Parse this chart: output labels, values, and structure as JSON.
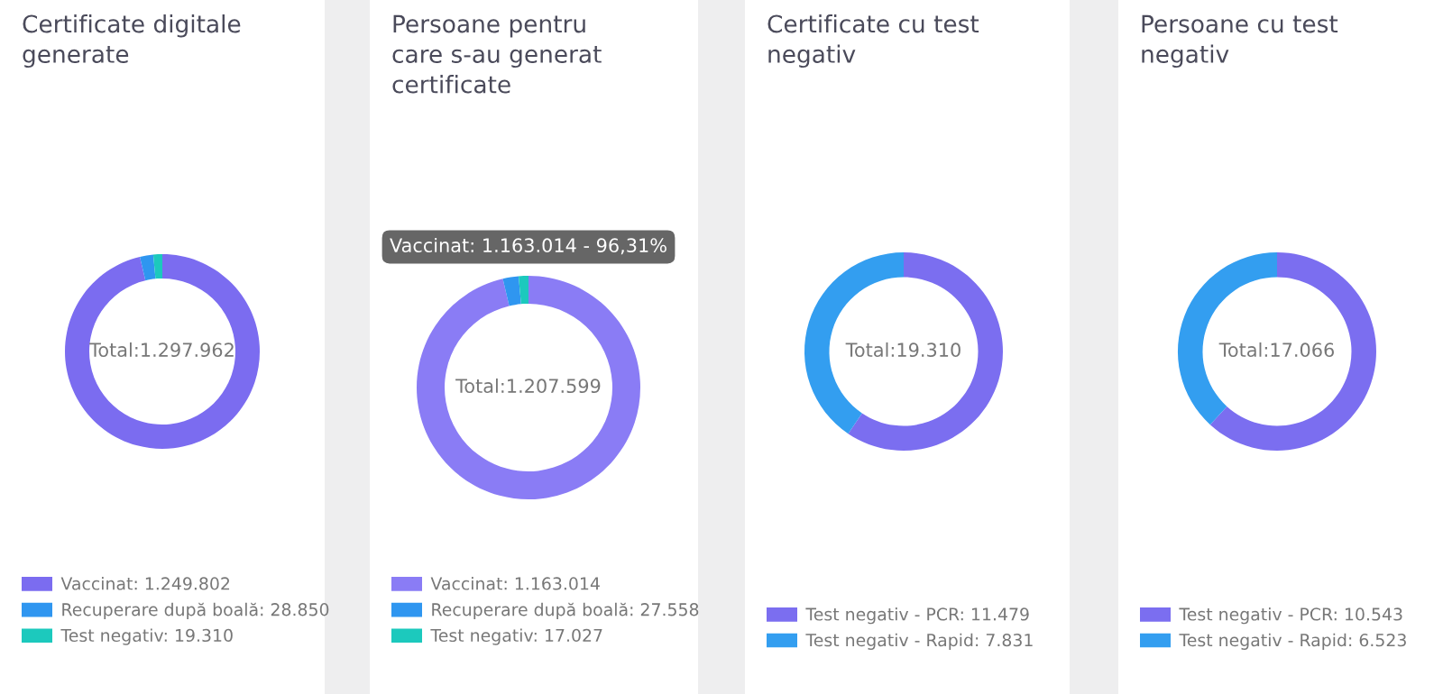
{
  "chart_data": [
    {
      "type": "donut",
      "title": "Certificate digitale\ngenerate",
      "categories": [
        "Vaccinat: 1.249.802",
        "Recuperare după boală: 28.850",
        "Test negativ: 19.310"
      ],
      "values": [
        1249802,
        28850,
        19310
      ],
      "colors": [
        "#7b6cf0",
        "#2f96f0",
        "#1cc9bd"
      ],
      "legend": "bottom",
      "annotations": [
        "Total:1.297.962"
      ]
    },
    {
      "type": "donut",
      "title": "Persoane pentru\ncare s-au generat\ncertificate",
      "categories": [
        "Vaccinat: 1.163.014",
        "Recuperare după boală: 27.558",
        "Test negativ: 17.027"
      ],
      "values": [
        1163014,
        27558,
        17027
      ],
      "colors": [
        "#8a7cf5",
        "#2f96f0",
        "#1cc9bd"
      ],
      "legend": "bottom",
      "annotations": [
        "Total:1.207.599",
        "Vaccinat: 1.163.014 - 96,31%"
      ]
    },
    {
      "type": "donut",
      "title": "Certificate cu test\nnegativ",
      "categories": [
        "Test negativ - PCR: 11.479",
        "Test negativ - Rapid: 7.831"
      ],
      "values": [
        11479,
        7831
      ],
      "colors": [
        "#7b6ef0",
        "#339ef0"
      ],
      "legend": "bottom",
      "annotations": [
        "Total:19.310"
      ]
    },
    {
      "type": "donut",
      "title": "Persoane cu test\nnegativ",
      "categories": [
        "Test negativ - PCR: 10.543",
        "Test negativ - Rapid: 6.523"
      ],
      "values": [
        10543,
        6523
      ],
      "colors": [
        "#7b6ef0",
        "#339ef0"
      ],
      "legend": "bottom",
      "annotations": [
        "Total:17.066"
      ]
    }
  ]
}
